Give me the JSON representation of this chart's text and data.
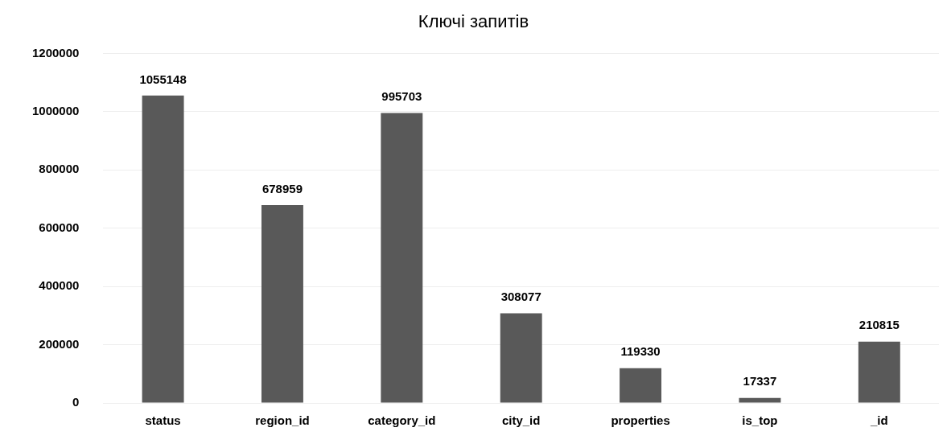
{
  "chart_data": {
    "type": "bar",
    "title": "Ключі запитів",
    "categories": [
      "status",
      "region_id",
      "category_id",
      "city_id",
      "properties",
      "is_top",
      "_id"
    ],
    "values": [
      1055148,
      678959,
      995703,
      308077,
      119330,
      17337,
      210815
    ],
    "color": "#595959",
    "ylim": [
      0,
      1200000
    ],
    "yticks": [
      0,
      200000,
      400000,
      600000,
      800000,
      1000000,
      1200000
    ],
    "grid": "y",
    "data_labels": true
  }
}
